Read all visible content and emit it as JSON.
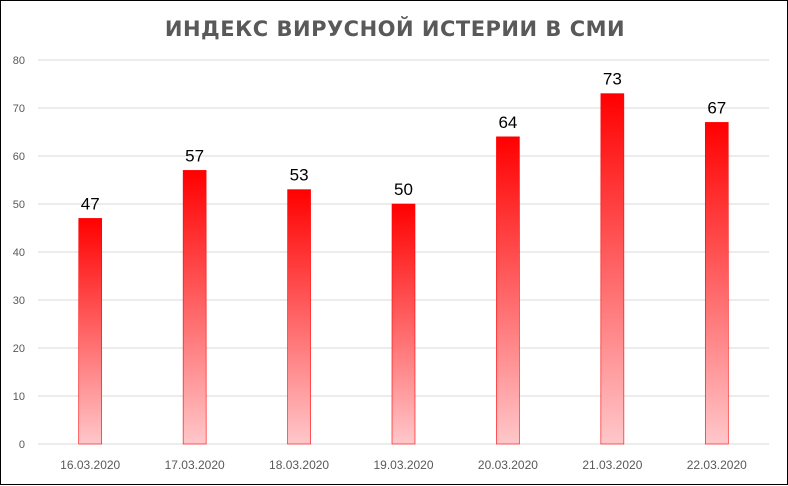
{
  "chart_data": {
    "type": "bar",
    "title": "ИНДЕКС ВИРУСНОЙ ИСТЕРИИ В СМИ",
    "categories": [
      "16.03.2020",
      "17.03.2020",
      "18.03.2020",
      "19.03.2020",
      "20.03.2020",
      "21.03.2020",
      "22.03.2020"
    ],
    "values": [
      47,
      57,
      53,
      50,
      64,
      73,
      67
    ],
    "ylim": [
      0,
      80
    ],
    "yticks": [
      0,
      10,
      20,
      30,
      40,
      50,
      60,
      70,
      80
    ],
    "grid": true,
    "data_labels": true,
    "legend": "none",
    "colors": {
      "bar_top": "#ff0000",
      "bar_bottom": "#ffc7ca",
      "grid": "#d9d9d9",
      "axis_text": "#595959"
    }
  }
}
